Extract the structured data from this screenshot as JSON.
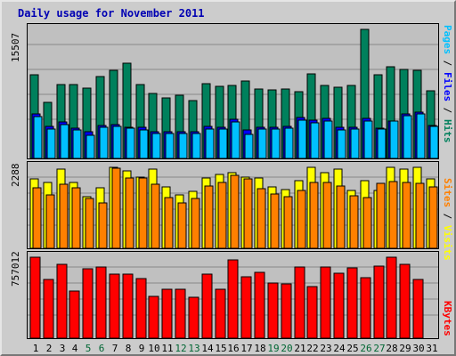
{
  "chart_data": [
    {
      "type": "bar",
      "title": "Daily usage for November 2011",
      "categories": [
        "1",
        "2",
        "3",
        "4",
        "5",
        "6",
        "7",
        "8",
        "9",
        "10",
        "11",
        "12",
        "13",
        "14",
        "15",
        "16",
        "17",
        "18",
        "19",
        "20",
        "21",
        "22",
        "23",
        "24",
        "25",
        "26",
        "27",
        "28",
        "29",
        "30",
        "31"
      ],
      "weekend_days": [
        "5",
        "6",
        "12",
        "13",
        "19",
        "20",
        "26",
        "27"
      ],
      "ymax_label": "15507",
      "ylim": [
        0,
        15507
      ],
      "series": [
        {
          "name": "Hits",
          "color": "#00805c",
          "values": [
            10000,
            6700,
            8900,
            8900,
            8500,
            9800,
            10600,
            11400,
            8900,
            7800,
            7300,
            7600,
            6900,
            9000,
            8700,
            8800,
            9300,
            8300,
            8200,
            8300,
            8000,
            10200,
            8800,
            8600,
            8800,
            15507,
            10100,
            11000,
            10700,
            10600,
            8100
          ]
        },
        {
          "name": "Files",
          "color": "#0000ff",
          "values": [
            5400,
            3800,
            4400,
            3600,
            3200,
            4000,
            4100,
            3700,
            3700,
            3200,
            3200,
            3200,
            3200,
            3800,
            3700,
            4700,
            3400,
            3700,
            3700,
            3800,
            4900,
            4600,
            4800,
            3700,
            3700,
            4800,
            3600,
            4500,
            5400,
            5600,
            4000
          ]
        },
        {
          "name": "Pages",
          "color": "#00c0ff",
          "values": [
            5000,
            3500,
            4100,
            3400,
            2800,
            3700,
            3800,
            3600,
            3400,
            3000,
            3000,
            3000,
            3000,
            3500,
            3500,
            4400,
            2900,
            3500,
            3500,
            3600,
            4600,
            4300,
            4500,
            3400,
            3500,
            4500,
            3500,
            4500,
            5100,
            5400,
            3800
          ]
        }
      ]
    },
    {
      "type": "bar",
      "ymax_label": "2288",
      "ylim": [
        0,
        2288
      ],
      "series": [
        {
          "name": "Visits",
          "color": "#ffff00",
          "values": [
            1960,
            1860,
            2230,
            1860,
            1450,
            1710,
            2280,
            2190,
            2000,
            2230,
            1740,
            1520,
            1600,
            1980,
            2090,
            2130,
            2020,
            1980,
            1730,
            1660,
            1920,
            2280,
            2140,
            2230,
            1640,
            1920,
            1640,
            2280,
            2230,
            2280,
            1960
          ]
        },
        {
          "name": "Sites",
          "color": "#ff8000",
          "values": [
            1700,
            1520,
            1810,
            1700,
            1400,
            1270,
            2260,
            1980,
            1980,
            1810,
            1430,
            1270,
            1400,
            1760,
            1860,
            2050,
            1970,
            1690,
            1530,
            1470,
            1640,
            1860,
            1860,
            1760,
            1480,
            1430,
            1840,
            1880,
            1860,
            1830,
            1740
          ]
        }
      ]
    },
    {
      "type": "bar",
      "ymax_label": "757012",
      "ylim": [
        0,
        757012
      ],
      "series": [
        {
          "name": "KBytes",
          "color": "#ff0000",
          "values": [
            757012,
            553000,
            688000,
            439000,
            649000,
            662000,
            600000,
            597000,
            555000,
            392000,
            460000,
            460000,
            385000,
            599000,
            459000,
            728000,
            571000,
            614000,
            516000,
            504000,
            668000,
            485000,
            669000,
            610000,
            657000,
            568000,
            673000,
            757000,
            690000,
            549000,
            0
          ]
        }
      ]
    }
  ],
  "right_labels": {
    "top": [
      "Pages",
      "Files",
      "Hits"
    ],
    "middle": [
      "Sites",
      "Visits"
    ],
    "bottom": [
      "KBytes"
    ],
    "separator": " / "
  },
  "colors": {
    "title": "#0000b3",
    "weekday_label": "#000000",
    "weekend_label": "#006633",
    "panel_bg": "#c0c0c0",
    "frame_bg": "#cccccc"
  }
}
